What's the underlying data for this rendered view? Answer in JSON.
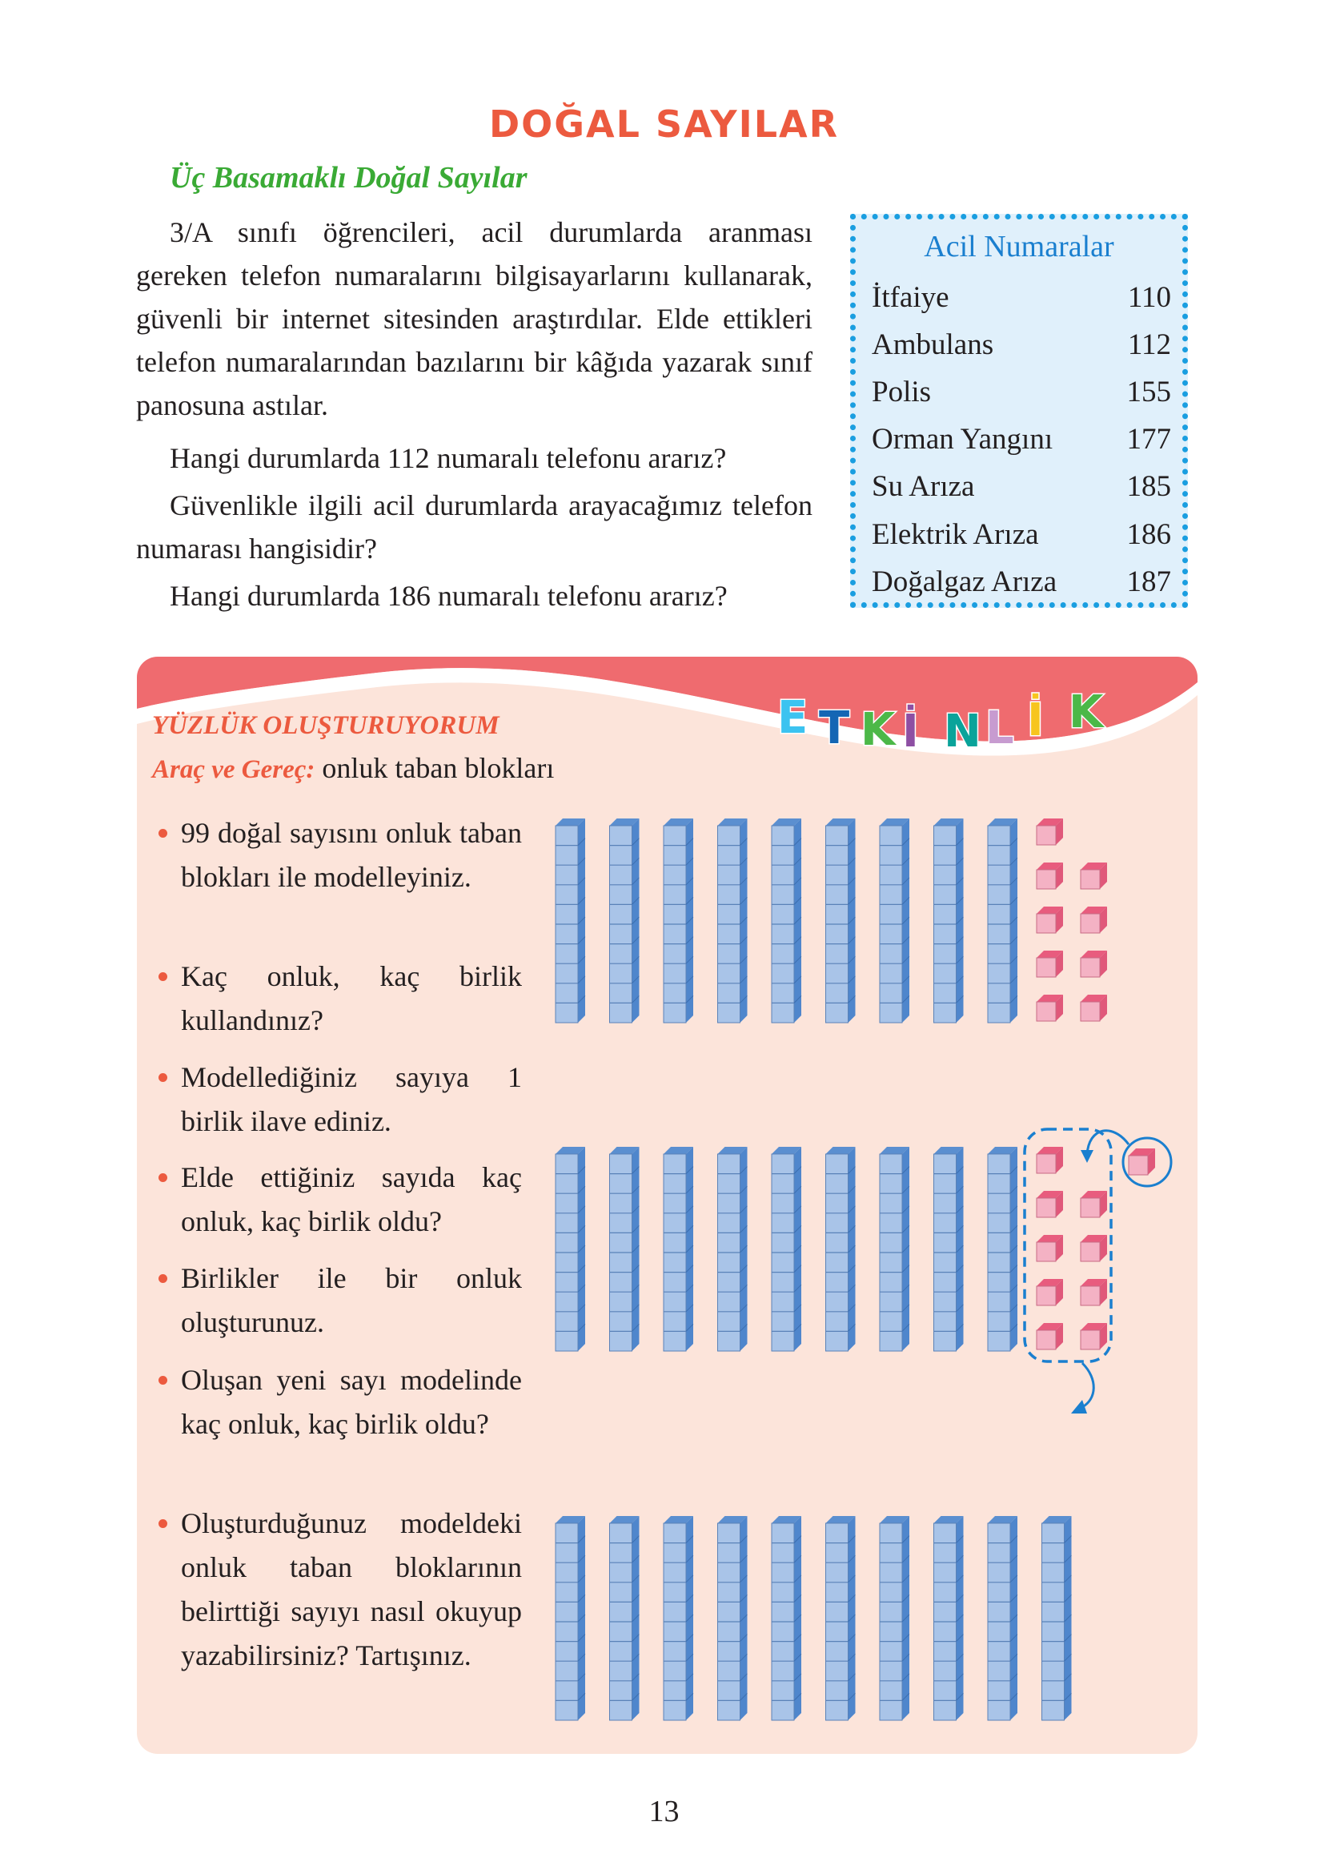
{
  "title": "DOĞAL SAYILAR",
  "subtitle": "Üç Basamaklı Doğal Sayılar",
  "paragraphs": [
    "3/A sınıfı öğrencileri, acil durumlarda aranması gereken telefon numaralarını bilgisayarlarını kullanarak, güvenli bir internet sitesinden araştırdılar. Elde ettikleri telefon numaralarından bazılarını bir kâğıda yazarak sınıf panosuna astılar.",
    "Hangi durumlarda 112 numaralı telefonu ararız?",
    "Güvenlikle ilgili acil durumlarda arayacağımız telefon numarası hangisidir?",
    "Hangi durumlarda 186 numaralı telefonu ararız?"
  ],
  "emergency_box": {
    "title": "Acil Numaralar",
    "rows": [
      {
        "name": "İtfaiye",
        "number": "110"
      },
      {
        "name": "Ambulans",
        "number": "112"
      },
      {
        "name": "Polis",
        "number": "155"
      },
      {
        "name": "Orman Yangını",
        "number": "177"
      },
      {
        "name": "Su Arıza",
        "number": "185"
      },
      {
        "name": "Elektrik Arıza",
        "number": "186"
      },
      {
        "name": "Doğalgaz Arıza",
        "number": "187"
      }
    ]
  },
  "activity": {
    "banner": "ETKİNLİK",
    "banner_colors": [
      "#3cc3f0",
      "#1466b4",
      "#4cb848",
      "#8e4fa3",
      "#0aa39a",
      "#c79bd0",
      "#f7c51e",
      "#4cb848"
    ],
    "title": "YÜZLÜK OLUŞTURUYORUM",
    "materials_label": "Araç ve Gereç:",
    "materials_value": "onluk taban blokları",
    "bullets": [
      "99 doğal sayısını onluk taban blokları ile modelleyiniz.",
      "Kaç onluk, kaç birlik kullandınız?",
      "Modellediğiniz sayıya 1 birlik ilave ediniz.",
      "Elde ettiğiniz sayıda kaç onluk, kaç birlik oldu?",
      "Birlikler ile bir onluk oluşturunuz.",
      "Oluşan yeni sayı modelinde kaç onluk, kaç birlik oldu?",
      "Oluşturduğunuz modeldeki onluk taban bloklarının belirttiği sayıyı nasıl okuyup yazabilirsiniz? Tartışınız."
    ],
    "models": [
      {
        "tens": 9,
        "ones": 9,
        "added_one": false
      },
      {
        "tens": 9,
        "ones": 9,
        "added_one": true
      },
      {
        "tens": 10,
        "ones": 0,
        "added_one": false
      }
    ]
  },
  "colors": {
    "accent_red": "#ec5a3f",
    "green": "#3aaa35",
    "blue": "#1a7fcf",
    "panel_bg": "#fce4da",
    "header_pink": "#ef6b6f",
    "rod": "#a9c4e8",
    "cube": "#f4b2c4"
  },
  "page_number": "13"
}
